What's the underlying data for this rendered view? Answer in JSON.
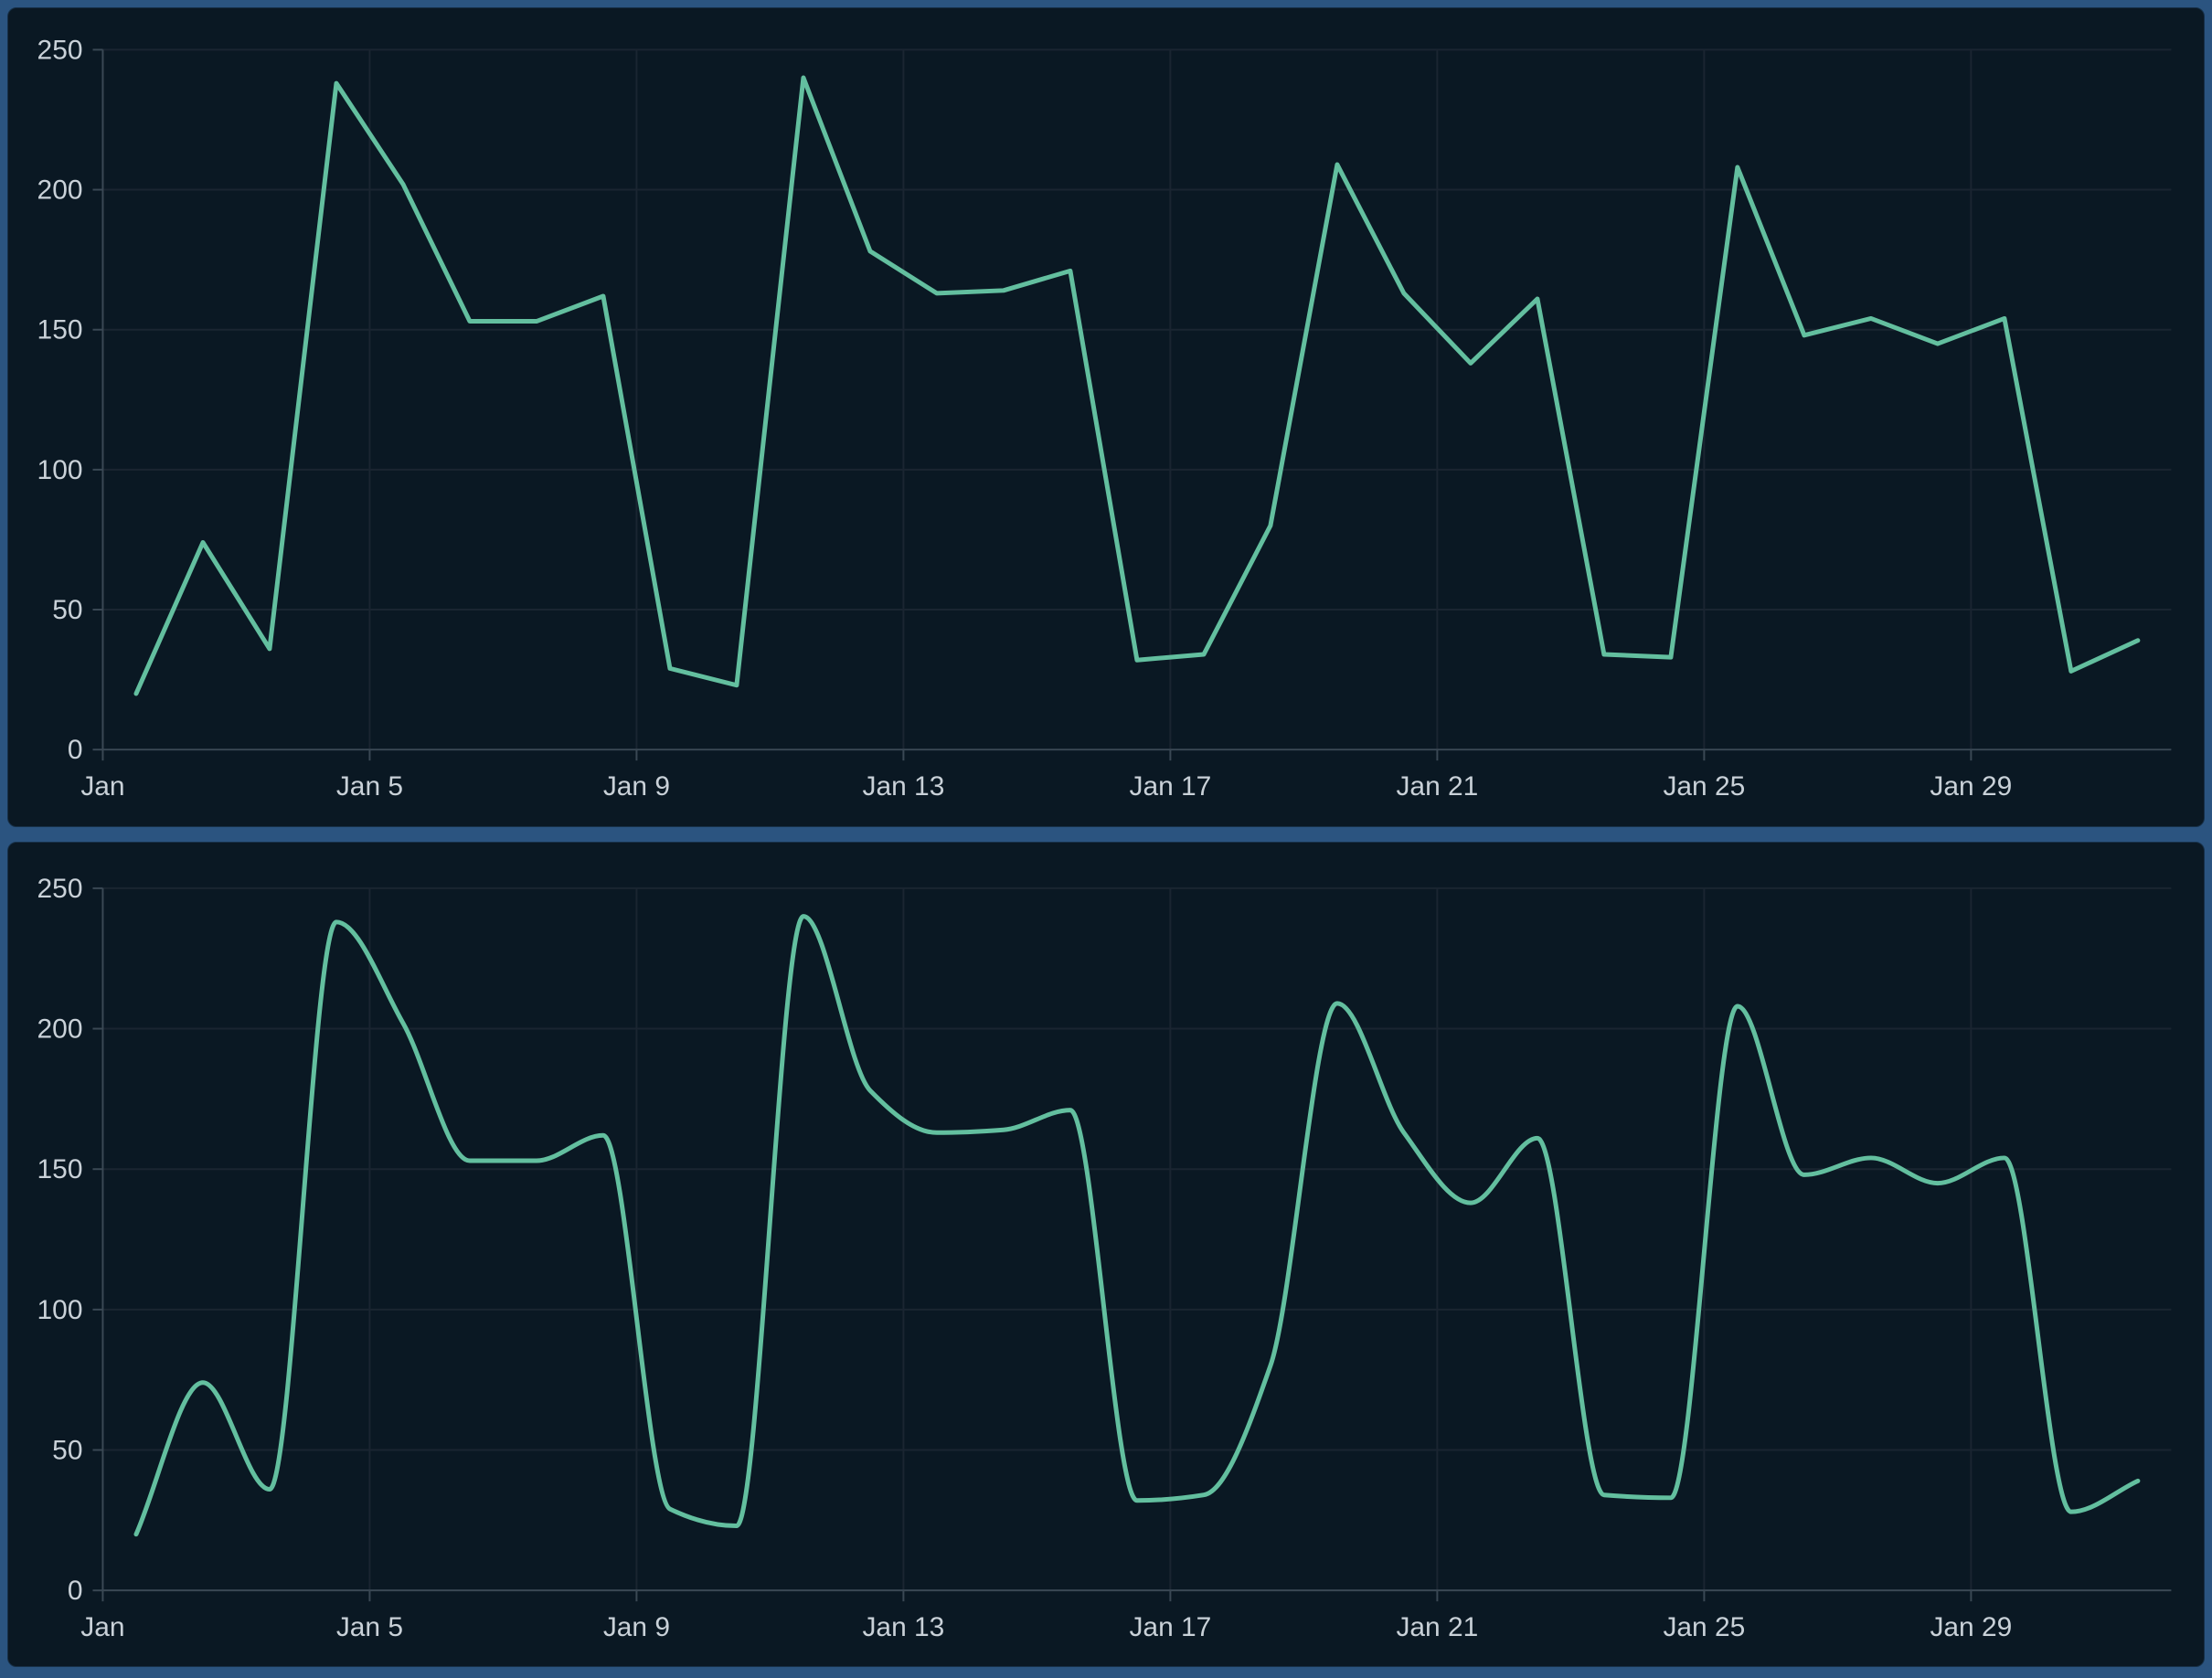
{
  "colors": {
    "page_background": "#2b5480",
    "panel_background": "#0a1823",
    "panel_border": "#173048",
    "line": "#63bf9f",
    "gridline": "#1a2531",
    "axis": "#3a4854",
    "tick_label": "#c9d1d8"
  },
  "y_axis": {
    "min": 0,
    "max": 250,
    "ticks": [
      0,
      50,
      100,
      150,
      200,
      250
    ]
  },
  "x_axis": {
    "tick_days": [
      1,
      5,
      9,
      13,
      17,
      21,
      25,
      29
    ],
    "tick_labels": [
      "Jan",
      "Jan 5",
      "Jan 9",
      "Jan 13",
      "Jan 17",
      "Jan 21",
      "Jan 25",
      "Jan 29"
    ]
  },
  "chart_data": [
    {
      "type": "line",
      "interpolation": "linear",
      "title": "",
      "xlabel": "",
      "ylabel": "",
      "ylim": [
        0,
        250
      ],
      "grid": true,
      "legend_position": "none",
      "x": [
        "Jan 1",
        "Jan 2",
        "Jan 3",
        "Jan 4",
        "Jan 5",
        "Jan 6",
        "Jan 7",
        "Jan 8",
        "Jan 9",
        "Jan 10",
        "Jan 11",
        "Jan 12",
        "Jan 13",
        "Jan 14",
        "Jan 15",
        "Jan 16",
        "Jan 17",
        "Jan 18",
        "Jan 19",
        "Jan 20",
        "Jan 21",
        "Jan 22",
        "Jan 23",
        "Jan 24",
        "Jan 25",
        "Jan 26",
        "Jan 27",
        "Jan 28",
        "Jan 29",
        "Jan 30",
        "Jan 31"
      ],
      "values": [
        20,
        74,
        36,
        238,
        202,
        153,
        153,
        162,
        29,
        23,
        240,
        178,
        163,
        164,
        171,
        32,
        34,
        80,
        209,
        163,
        138,
        161,
        34,
        33,
        208,
        148,
        154,
        145,
        154,
        28,
        39
      ]
    },
    {
      "type": "line",
      "interpolation": "monotone-smooth",
      "title": "",
      "xlabel": "",
      "ylabel": "",
      "ylim": [
        0,
        250
      ],
      "grid": true,
      "legend_position": "none",
      "x": [
        "Jan 1",
        "Jan 2",
        "Jan 3",
        "Jan 4",
        "Jan 5",
        "Jan 6",
        "Jan 7",
        "Jan 8",
        "Jan 9",
        "Jan 10",
        "Jan 11",
        "Jan 12",
        "Jan 13",
        "Jan 14",
        "Jan 15",
        "Jan 16",
        "Jan 17",
        "Jan 18",
        "Jan 19",
        "Jan 20",
        "Jan 21",
        "Jan 22",
        "Jan 23",
        "Jan 24",
        "Jan 25",
        "Jan 26",
        "Jan 27",
        "Jan 28",
        "Jan 29",
        "Jan 30",
        "Jan 31"
      ],
      "values": [
        20,
        74,
        36,
        238,
        202,
        153,
        153,
        162,
        29,
        23,
        240,
        178,
        163,
        164,
        171,
        32,
        34,
        80,
        209,
        163,
        138,
        161,
        34,
        33,
        208,
        148,
        154,
        145,
        154,
        28,
        39
      ]
    }
  ]
}
